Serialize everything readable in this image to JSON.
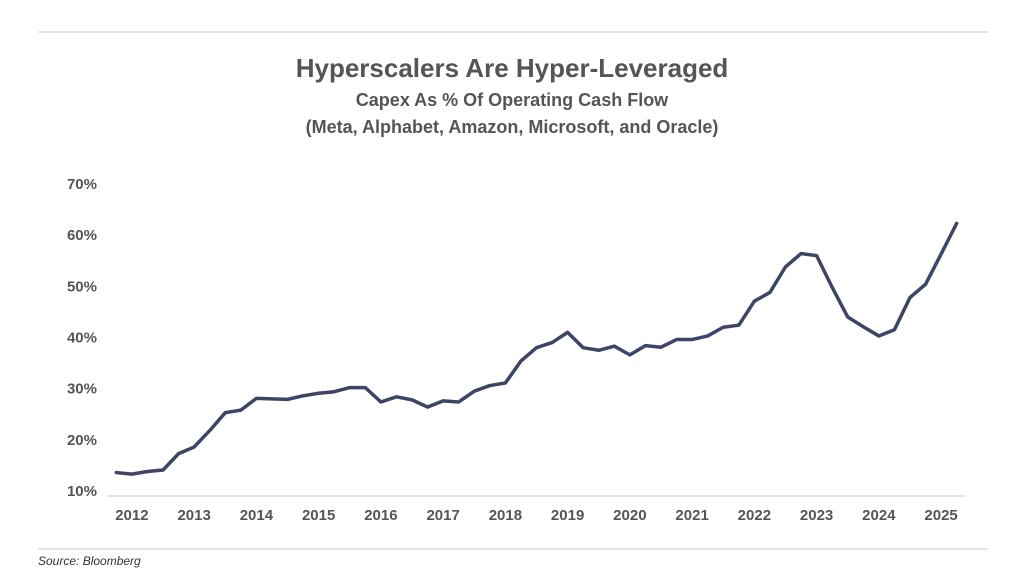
{
  "chart_data": {
    "type": "line",
    "title": "Hyperscalers Are Hyper-Leveraged",
    "subtitle": [
      "Capex As % Of Operating Cash Flow",
      "(Meta, Alphabet, Amazon, Microsoft, and Oracle)"
    ],
    "source": "Source: Bloomberg",
    "x": [
      2011.75,
      2012,
      2012.25,
      2012.5,
      2012.75,
      2013,
      2013.25,
      2013.5,
      2013.75,
      2014,
      2014.25,
      2014.5,
      2014.75,
      2015,
      2015.25,
      2015.5,
      2015.75,
      2016,
      2016.25,
      2016.5,
      2016.75,
      2017,
      2017.25,
      2017.5,
      2017.75,
      2018,
      2018.25,
      2018.5,
      2018.75,
      2019,
      2019.25,
      2019.5,
      2019.75,
      2020,
      2020.25,
      2020.5,
      2020.75,
      2021,
      2021.25,
      2021.5,
      2021.75,
      2022,
      2022.25,
      2022.5,
      2022.75,
      2023,
      2023.25,
      2023.5,
      2023.75,
      2024,
      2024.25,
      2024.5,
      2024.75,
      2025,
      2025.25
    ],
    "series": [
      {
        "name": "Capex / Operating Cash Flow",
        "color": "#3d4466",
        "values": [
          13.8,
          13.5,
          14.0,
          14.3,
          17.5,
          18.8,
          22,
          25.5,
          26,
          28.3,
          28.2,
          28.1,
          28.8,
          29.3,
          29.6,
          30.4,
          30.4,
          27.6,
          28.6,
          28,
          26.6,
          27.8,
          27.6,
          29.7,
          30.8,
          31.3,
          35.6,
          38.2,
          39.2,
          41.2,
          38.2,
          37.7,
          38.5,
          36.8,
          38.6,
          38.3,
          39.8,
          39.8,
          40.5,
          42.2,
          42.6,
          47.3,
          49,
          54,
          56.6,
          56.2,
          50,
          44.2,
          42.3,
          40.5,
          41.7,
          48,
          50.6,
          56.5,
          62.5
        ]
      }
    ],
    "xlim": [
      2011.6,
      2025.4
    ],
    "xticks": [
      2012,
      2013,
      2014,
      2015,
      2016,
      2017,
      2018,
      2019,
      2020,
      2021,
      2022,
      2023,
      2024,
      2025
    ],
    "ylim": [
      10,
      70
    ],
    "yticks": [
      {
        "value": 10,
        "label": "10%"
      },
      {
        "value": 20,
        "label": "20%"
      },
      {
        "value": 30,
        "label": "30%"
      },
      {
        "value": 40,
        "label": "40%"
      },
      {
        "value": 50,
        "label": "50%"
      },
      {
        "value": 60,
        "label": "60%"
      },
      {
        "value": 70,
        "label": "70%"
      }
    ],
    "grid": false
  }
}
